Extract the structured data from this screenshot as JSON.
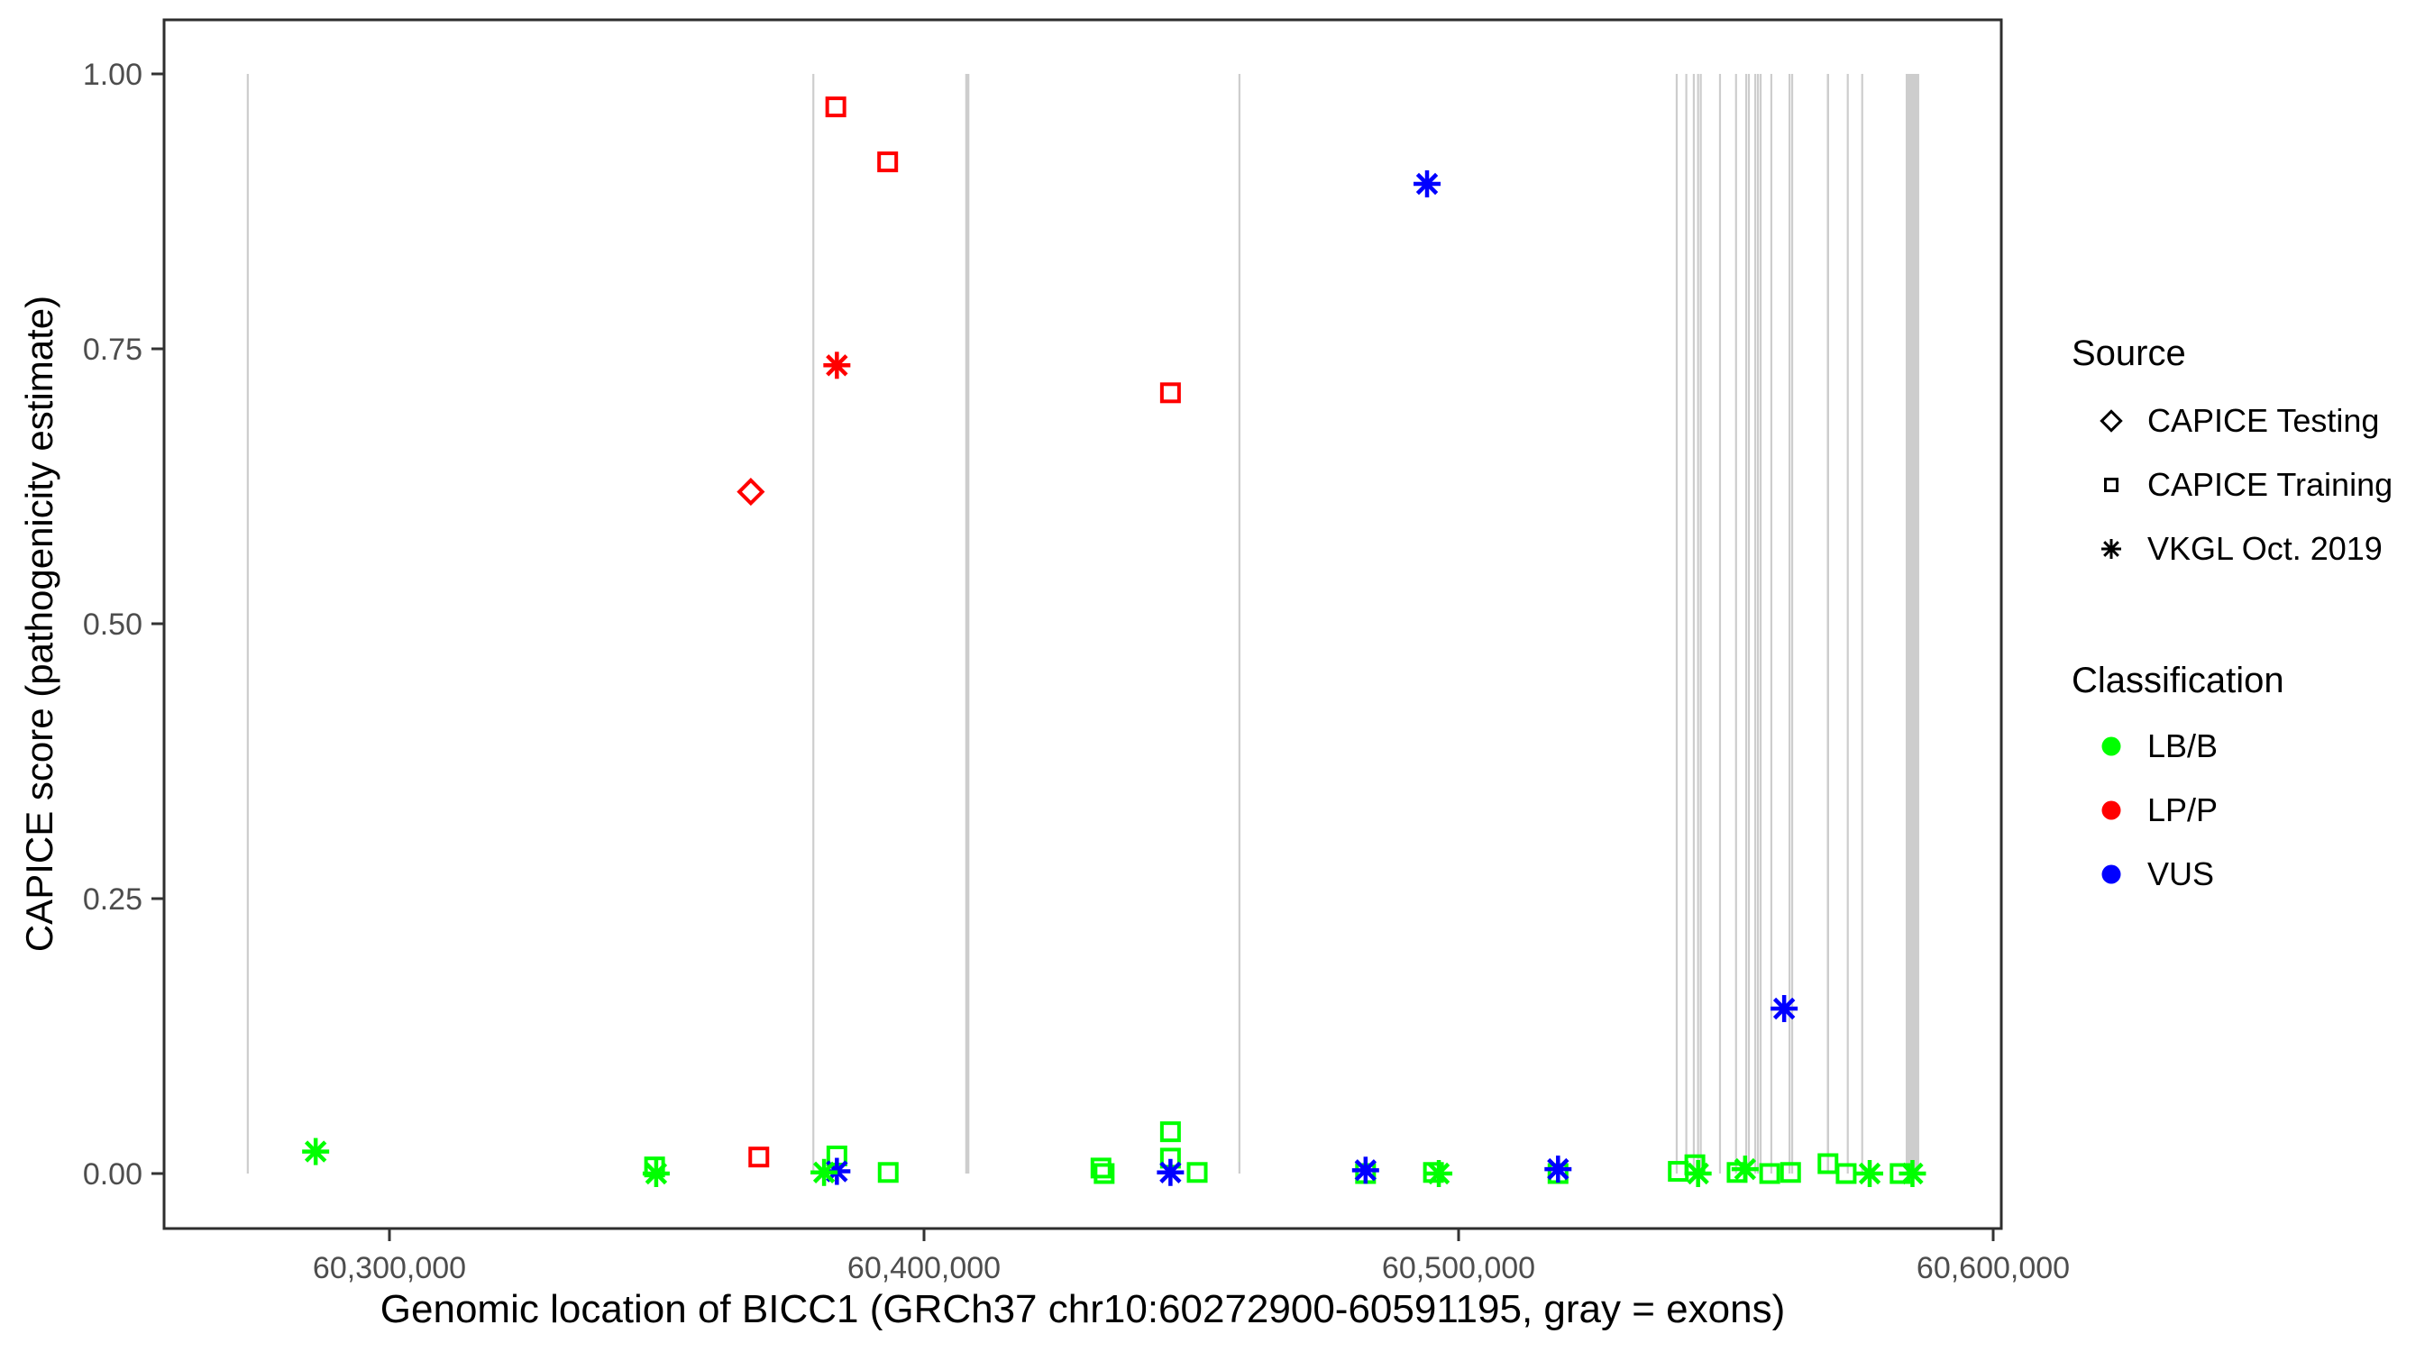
{
  "figure_title": "",
  "legend": {
    "source": {
      "title": "Source",
      "items": [
        {
          "label": "CAPICE Testing",
          "symbol": "diamond-open"
        },
        {
          "label": "CAPICE Training",
          "symbol": "square-open"
        },
        {
          "label": "VKGL Oct. 2019",
          "symbol": "asterisk"
        }
      ]
    },
    "classification": {
      "title": "Classification",
      "items": [
        {
          "label": "LB/B",
          "color": "#00FF00"
        },
        {
          "label": "LP/P",
          "color": "#FF0000"
        },
        {
          "label": "VUS",
          "color": "#0000FF"
        }
      ]
    }
  },
  "chart_data": {
    "type": "scatter",
    "title": "",
    "xlabel": "Genomic location of BICC1 (GRCh37 chr10:60272900-60591195, gray = exons)",
    "ylabel": "CAPICE score (pathogenicity estimate)",
    "x_axis": {
      "tick_labels": [
        "60,300,000",
        "60,400,000",
        "60,500,000",
        "60,600,000"
      ],
      "tick_values": [
        60300000,
        60400000,
        60500000,
        60600000
      ],
      "domain": [
        60257841,
        60601518
      ]
    },
    "y_axis": {
      "tick_labels": [
        "0.00",
        "0.25",
        "0.50",
        "0.75",
        "1.00"
      ],
      "tick_values": [
        0,
        0.25,
        0.5,
        0.75,
        1.0
      ],
      "domain": [
        -0.05,
        1.05
      ]
    },
    "grid": "off",
    "legend_position": "right",
    "colors": {
      "LB/B": "#00FF00",
      "LP/P": "#FF0000",
      "VUS": "#0000FF",
      "exon": "#CDCDCD",
      "panel_border": "#2E2E2E",
      "tick_text": "#4D4D4D"
    },
    "exons_note": "gray vertical bands = exons, drawn from score 0 to 1",
    "exons": [
      {
        "pos": 60273500,
        "bp": 250
      },
      {
        "pos": 60379300,
        "bp": 250
      },
      {
        "pos": 60408100,
        "bp": 780
      },
      {
        "pos": 60459000,
        "bp": 250
      },
      {
        "pos": 60540800,
        "bp": 250
      },
      {
        "pos": 60542600,
        "bp": 250
      },
      {
        "pos": 60544000,
        "bp": 250
      },
      {
        "pos": 60544800,
        "bp": 250
      },
      {
        "pos": 60545300,
        "bp": 250
      },
      {
        "pos": 60548900,
        "bp": 250
      },
      {
        "pos": 60551900,
        "bp": 250
      },
      {
        "pos": 60553800,
        "bp": 250
      },
      {
        "pos": 60554300,
        "bp": 250
      },
      {
        "pos": 60555500,
        "bp": 250
      },
      {
        "pos": 60556000,
        "bp": 250
      },
      {
        "pos": 60556500,
        "bp": 250
      },
      {
        "pos": 60558500,
        "bp": 250
      },
      {
        "pos": 60561900,
        "bp": 250
      },
      {
        "pos": 60562400,
        "bp": 250
      },
      {
        "pos": 60569100,
        "bp": 420
      },
      {
        "pos": 60572800,
        "bp": 250
      },
      {
        "pos": 60575500,
        "bp": 250
      },
      {
        "pos": 60584900,
        "bp": 2530
      }
    ],
    "points": [
      {
        "pos": 60367600,
        "score": 0.62,
        "source": "CAPICE Testing",
        "classification": "LP/P"
      },
      {
        "pos": 60383500,
        "score": 0.97,
        "source": "CAPICE Training",
        "classification": "LP/P"
      },
      {
        "pos": 60393200,
        "score": 0.92,
        "source": "CAPICE Training",
        "classification": "LP/P"
      },
      {
        "pos": 60446100,
        "score": 0.71,
        "source": "CAPICE Training",
        "classification": "LP/P"
      },
      {
        "pos": 60369100,
        "score": 0.015,
        "source": "CAPICE Training",
        "classification": "LP/P"
      },
      {
        "pos": 60349600,
        "score": 0.006,
        "source": "CAPICE Training",
        "classification": "LB/B"
      },
      {
        "pos": 60383700,
        "score": 0.016,
        "source": "CAPICE Training",
        "classification": "LB/B"
      },
      {
        "pos": 60393300,
        "score": 0.001,
        "source": "CAPICE Training",
        "classification": "LB/B"
      },
      {
        "pos": 60433100,
        "score": 0.005,
        "source": "CAPICE Training",
        "classification": "LB/B"
      },
      {
        "pos": 60433700,
        "score": 0.0,
        "source": "CAPICE Training",
        "classification": "LB/B"
      },
      {
        "pos": 60446100,
        "score": 0.038,
        "source": "CAPICE Training",
        "classification": "LB/B"
      },
      {
        "pos": 60446100,
        "score": 0.014,
        "source": "CAPICE Training",
        "classification": "LB/B"
      },
      {
        "pos": 60451100,
        "score": 0.001,
        "source": "CAPICE Training",
        "classification": "LB/B"
      },
      {
        "pos": 60482600,
        "score": 0.0,
        "source": "CAPICE Training",
        "classification": "LB/B"
      },
      {
        "pos": 60495300,
        "score": 0.001,
        "source": "CAPICE Training",
        "classification": "LB/B"
      },
      {
        "pos": 60518600,
        "score": 0.0,
        "source": "CAPICE Training",
        "classification": "LB/B"
      },
      {
        "pos": 60541100,
        "score": 0.002,
        "source": "CAPICE Training",
        "classification": "LB/B"
      },
      {
        "pos": 60544200,
        "score": 0.008,
        "source": "CAPICE Training",
        "classification": "LB/B"
      },
      {
        "pos": 60552100,
        "score": 0.001,
        "source": "CAPICE Training",
        "classification": "LB/B"
      },
      {
        "pos": 60558200,
        "score": 0.0,
        "source": "CAPICE Training",
        "classification": "LB/B"
      },
      {
        "pos": 60562100,
        "score": 0.001,
        "source": "CAPICE Training",
        "classification": "LB/B"
      },
      {
        "pos": 60569100,
        "score": 0.009,
        "source": "CAPICE Training",
        "classification": "LB/B"
      },
      {
        "pos": 60572500,
        "score": 0.0,
        "source": "CAPICE Training",
        "classification": "LB/B"
      },
      {
        "pos": 60582600,
        "score": 0.0,
        "source": "CAPICE Training",
        "classification": "LB/B"
      },
      {
        "pos": 60383700,
        "score": 0.735,
        "source": "VKGL Oct. 2019",
        "classification": "LP/P"
      },
      {
        "pos": 60494100,
        "score": 0.9,
        "source": "VKGL Oct. 2019",
        "classification": "VUS"
      },
      {
        "pos": 60560900,
        "score": 0.15,
        "source": "VKGL Oct. 2019",
        "classification": "VUS"
      },
      {
        "pos": 60383700,
        "score": 0.002,
        "source": "VKGL Oct. 2019",
        "classification": "VUS"
      },
      {
        "pos": 60446100,
        "score": 0.001,
        "source": "VKGL Oct. 2019",
        "classification": "VUS"
      },
      {
        "pos": 60482600,
        "score": 0.003,
        "source": "VKGL Oct. 2019",
        "classification": "VUS"
      },
      {
        "pos": 60518600,
        "score": 0.004,
        "source": "VKGL Oct. 2019",
        "classification": "VUS"
      },
      {
        "pos": 60286200,
        "score": 0.02,
        "source": "VKGL Oct. 2019",
        "classification": "LB/B"
      },
      {
        "pos": 60349900,
        "score": 0.0,
        "source": "VKGL Oct. 2019",
        "classification": "LB/B"
      },
      {
        "pos": 60381300,
        "score": 0.001,
        "source": "VKGL Oct. 2019",
        "classification": "LB/B"
      },
      {
        "pos": 60496300,
        "score": 0.0,
        "source": "VKGL Oct. 2019",
        "classification": "LB/B"
      },
      {
        "pos": 60544800,
        "score": 0.0,
        "source": "VKGL Oct. 2019",
        "classification": "LB/B"
      },
      {
        "pos": 60553600,
        "score": 0.004,
        "source": "VKGL Oct. 2019",
        "classification": "LB/B"
      },
      {
        "pos": 60576900,
        "score": 0.0,
        "source": "VKGL Oct. 2019",
        "classification": "LB/B"
      },
      {
        "pos": 60584900,
        "score": 0.0,
        "source": "VKGL Oct. 2019",
        "classification": "LB/B"
      }
    ]
  }
}
